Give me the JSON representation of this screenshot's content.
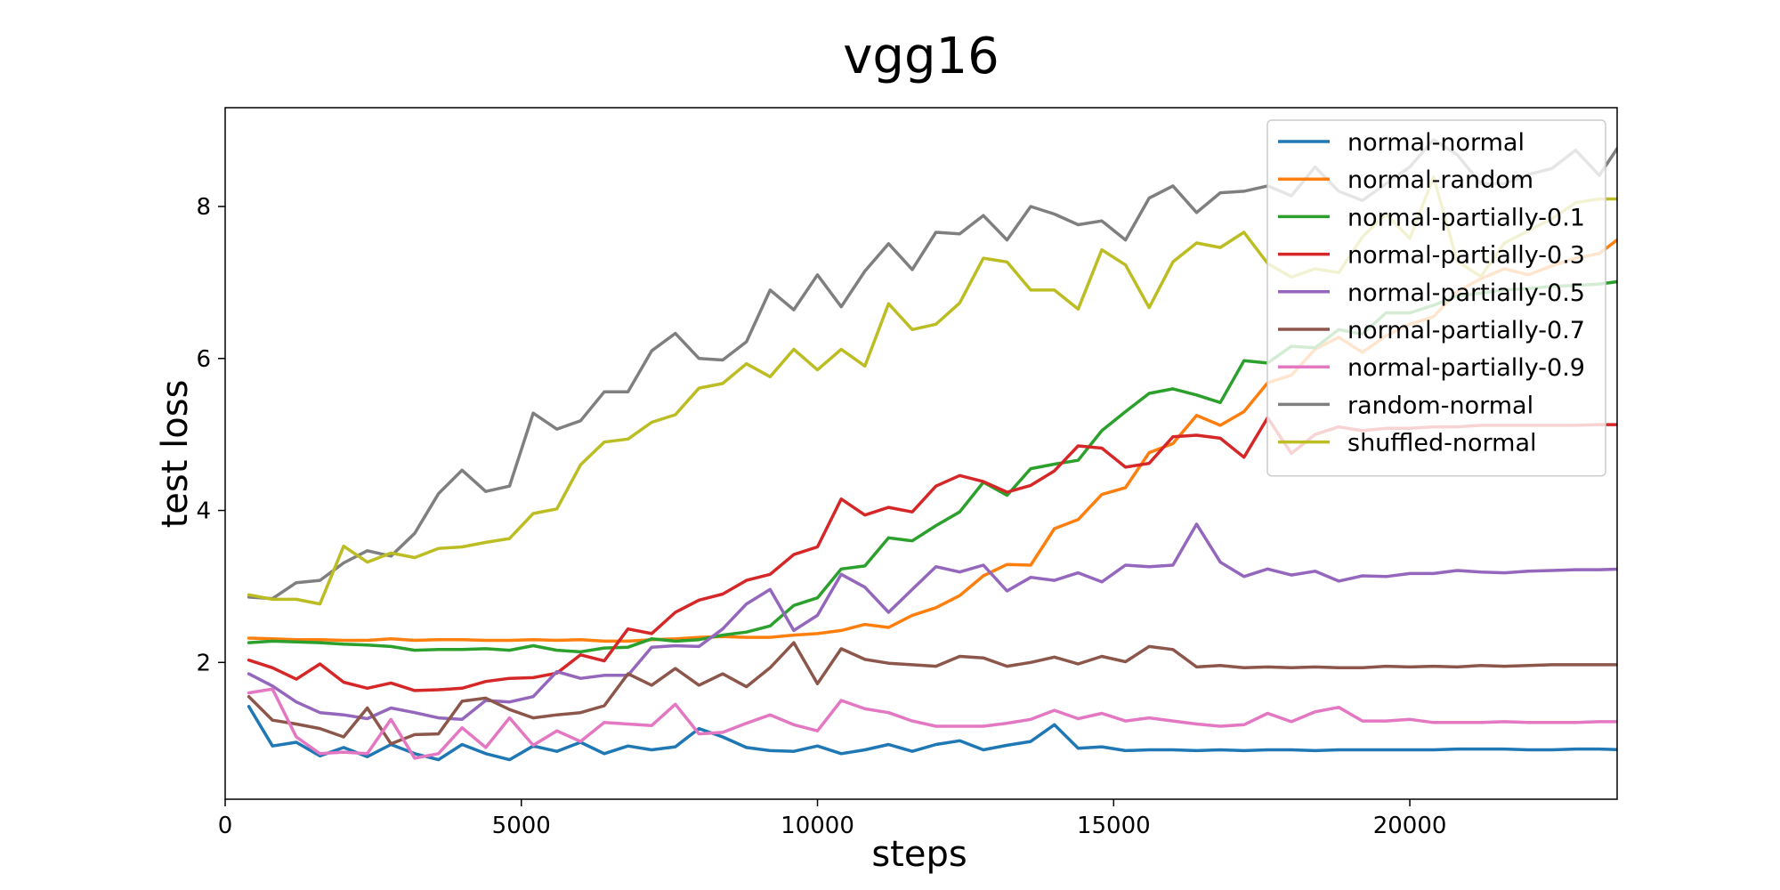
{
  "chart_data": {
    "type": "line",
    "title": "vgg16",
    "xlabel": "steps",
    "ylabel": "test loss",
    "xlim": [
      0,
      23500
    ],
    "ylim": [
      0.2,
      9.3
    ],
    "xticks": [
      0,
      5000,
      10000,
      15000,
      20000
    ],
    "yticks": [
      2,
      4,
      6,
      8
    ],
    "grid": false,
    "legend_position": "top-right",
    "x": [
      400,
      800,
      1200,
      1600,
      2000,
      2400,
      2800,
      3200,
      3600,
      4000,
      4400,
      4800,
      5200,
      5600,
      6000,
      6400,
      6800,
      7200,
      7600,
      8000,
      8400,
      8800,
      9200,
      9600,
      10000,
      10400,
      10800,
      11200,
      11600,
      12000,
      12400,
      12800,
      13200,
      13600,
      14000,
      14400,
      14800,
      15200,
      15600,
      16000,
      16400,
      16800,
      17200,
      17600,
      18000,
      18400,
      18800,
      19200,
      19600,
      20000,
      20400,
      20800,
      21200,
      21600,
      22000,
      22400,
      22800,
      23200,
      23600
    ],
    "series": [
      {
        "name": "normal-normal",
        "color": "#1f77b4",
        "values": [
          1.42,
          0.9,
          0.95,
          0.77,
          0.88,
          0.76,
          0.92,
          0.8,
          0.72,
          0.92,
          0.8,
          0.72,
          0.9,
          0.83,
          0.95,
          0.8,
          0.9,
          0.85,
          0.89,
          1.13,
          1.02,
          0.88,
          0.84,
          0.83,
          0.9,
          0.8,
          0.85,
          0.92,
          0.83,
          0.92,
          0.97,
          0.85,
          0.91,
          0.96,
          1.18,
          0.87,
          0.89,
          0.84,
          0.85,
          0.85,
          0.84,
          0.85,
          0.84,
          0.85,
          0.85,
          0.84,
          0.85,
          0.85,
          0.85,
          0.85,
          0.85,
          0.86,
          0.86,
          0.86,
          0.85,
          0.85,
          0.86,
          0.86,
          0.85
        ]
      },
      {
        "name": "normal-random",
        "color": "#ff7f0e",
        "values": [
          2.32,
          2.31,
          2.3,
          2.3,
          2.29,
          2.29,
          2.31,
          2.29,
          2.3,
          2.3,
          2.29,
          2.29,
          2.3,
          2.29,
          2.3,
          2.28,
          2.28,
          2.3,
          2.31,
          2.33,
          2.34,
          2.33,
          2.33,
          2.36,
          2.38,
          2.42,
          2.5,
          2.46,
          2.62,
          2.72,
          2.88,
          3.14,
          3.29,
          3.28,
          3.76,
          3.88,
          4.21,
          4.3,
          4.76,
          4.88,
          5.25,
          5.12,
          5.3,
          5.68,
          5.78,
          6.12,
          6.28,
          6.08,
          6.3,
          6.45,
          6.55,
          6.88,
          7.05,
          7.18,
          7.1,
          7.22,
          7.32,
          7.38,
          7.62
        ]
      },
      {
        "name": "normal-partially-0.1",
        "color": "#2ca02c",
        "values": [
          2.26,
          2.28,
          2.27,
          2.26,
          2.24,
          2.23,
          2.21,
          2.16,
          2.17,
          2.17,
          2.18,
          2.16,
          2.22,
          2.16,
          2.14,
          2.19,
          2.2,
          2.31,
          2.28,
          2.3,
          2.36,
          2.4,
          2.48,
          2.75,
          2.85,
          3.23,
          3.27,
          3.64,
          3.6,
          3.8,
          3.98,
          4.37,
          4.2,
          4.55,
          4.61,
          4.66,
          5.05,
          5.3,
          5.54,
          5.6,
          5.52,
          5.42,
          5.97,
          5.94,
          6.16,
          6.14,
          6.38,
          6.32,
          6.6,
          6.6,
          6.7,
          6.82,
          6.86,
          6.9,
          6.92,
          6.95,
          6.96,
          6.98,
          7.02
        ]
      },
      {
        "name": "normal-partially-0.3",
        "color": "#d62728",
        "values": [
          2.03,
          1.93,
          1.78,
          1.98,
          1.74,
          1.66,
          1.73,
          1.63,
          1.64,
          1.66,
          1.75,
          1.79,
          1.8,
          1.86,
          2.1,
          2.02,
          2.44,
          2.38,
          2.66,
          2.82,
          2.9,
          3.08,
          3.16,
          3.42,
          3.52,
          4.15,
          3.94,
          4.04,
          3.98,
          4.32,
          4.46,
          4.38,
          4.24,
          4.33,
          4.52,
          4.85,
          4.82,
          4.57,
          4.62,
          4.97,
          4.99,
          4.95,
          4.7,
          5.22,
          4.75,
          5.0,
          5.1,
          5.05,
          5.08,
          5.08,
          5.1,
          5.1,
          5.12,
          5.12,
          5.12,
          5.12,
          5.12,
          5.13,
          5.13
        ]
      },
      {
        "name": "normal-partially-0.5",
        "color": "#9467bd",
        "values": [
          1.85,
          1.69,
          1.48,
          1.34,
          1.31,
          1.26,
          1.4,
          1.34,
          1.27,
          1.25,
          1.5,
          1.48,
          1.55,
          1.88,
          1.79,
          1.83,
          1.83,
          2.2,
          2.22,
          2.21,
          2.44,
          2.77,
          2.96,
          2.42,
          2.62,
          3.16,
          2.99,
          2.66,
          2.96,
          3.26,
          3.19,
          3.28,
          2.94,
          3.12,
          3.08,
          3.18,
          3.06,
          3.28,
          3.26,
          3.28,
          3.82,
          3.32,
          3.13,
          3.23,
          3.15,
          3.2,
          3.07,
          3.14,
          3.13,
          3.17,
          3.17,
          3.21,
          3.19,
          3.18,
          3.2,
          3.21,
          3.22,
          3.22,
          3.23
        ]
      },
      {
        "name": "normal-partially-0.7",
        "color": "#8c564b",
        "values": [
          1.55,
          1.24,
          1.19,
          1.13,
          1.02,
          1.4,
          0.93,
          1.05,
          1.06,
          1.49,
          1.53,
          1.38,
          1.27,
          1.31,
          1.34,
          1.43,
          1.85,
          1.7,
          1.92,
          1.7,
          1.85,
          1.68,
          1.93,
          2.26,
          1.72,
          2.18,
          2.04,
          1.99,
          1.97,
          1.95,
          2.08,
          2.06,
          1.95,
          2.0,
          2.07,
          1.98,
          2.08,
          2.01,
          2.21,
          2.17,
          1.94,
          1.96,
          1.93,
          1.94,
          1.93,
          1.94,
          1.93,
          1.93,
          1.95,
          1.94,
          1.95,
          1.94,
          1.96,
          1.95,
          1.96,
          1.97,
          1.97,
          1.97,
          1.97
        ]
      },
      {
        "name": "normal-partially-0.9",
        "color": "#e377c2",
        "values": [
          1.6,
          1.65,
          1.02,
          0.8,
          0.82,
          0.8,
          1.25,
          0.74,
          0.8,
          1.14,
          0.88,
          1.27,
          0.91,
          1.1,
          0.96,
          1.21,
          1.19,
          1.17,
          1.45,
          1.06,
          1.08,
          1.2,
          1.31,
          1.18,
          1.1,
          1.5,
          1.39,
          1.34,
          1.23,
          1.16,
          1.16,
          1.16,
          1.2,
          1.25,
          1.37,
          1.26,
          1.33,
          1.23,
          1.27,
          1.23,
          1.19,
          1.16,
          1.18,
          1.33,
          1.22,
          1.35,
          1.41,
          1.23,
          1.23,
          1.25,
          1.21,
          1.21,
          1.21,
          1.22,
          1.21,
          1.21,
          1.21,
          1.22,
          1.22
        ]
      },
      {
        "name": "random-normal",
        "color": "#7f7f7f",
        "values": [
          2.86,
          2.84,
          3.05,
          3.08,
          3.31,
          3.47,
          3.4,
          3.7,
          4.22,
          4.53,
          4.25,
          4.32,
          5.28,
          5.07,
          5.18,
          5.56,
          5.56,
          6.1,
          6.33,
          6.0,
          5.98,
          6.22,
          6.9,
          6.64,
          7.1,
          6.68,
          7.15,
          7.51,
          7.17,
          7.66,
          7.64,
          7.88,
          7.56,
          8.0,
          7.9,
          7.76,
          7.81,
          7.56,
          8.11,
          8.27,
          7.92,
          8.18,
          8.2,
          8.27,
          8.14,
          8.52,
          8.2,
          8.08,
          8.3,
          8.52,
          8.88,
          8.68,
          8.3,
          8.3,
          8.42,
          8.5,
          8.74,
          8.41,
          8.88
        ]
      },
      {
        "name": "shuffled-normal",
        "color": "#bcbd22",
        "values": [
          2.89,
          2.83,
          2.83,
          2.77,
          3.53,
          3.32,
          3.44,
          3.38,
          3.5,
          3.52,
          3.58,
          3.63,
          3.96,
          4.02,
          4.6,
          4.9,
          4.94,
          5.16,
          5.26,
          5.61,
          5.67,
          5.93,
          5.76,
          6.12,
          5.85,
          6.12,
          5.9,
          6.72,
          6.38,
          6.45,
          6.73,
          7.32,
          7.27,
          6.9,
          6.9,
          6.65,
          7.43,
          7.23,
          6.67,
          7.27,
          7.52,
          7.46,
          7.66,
          7.25,
          7.07,
          7.18,
          7.13,
          7.6,
          7.9,
          7.58,
          8.39,
          7.28,
          7.08,
          7.52,
          7.68,
          7.84,
          8.05,
          8.1,
          8.1
        ]
      }
    ]
  }
}
